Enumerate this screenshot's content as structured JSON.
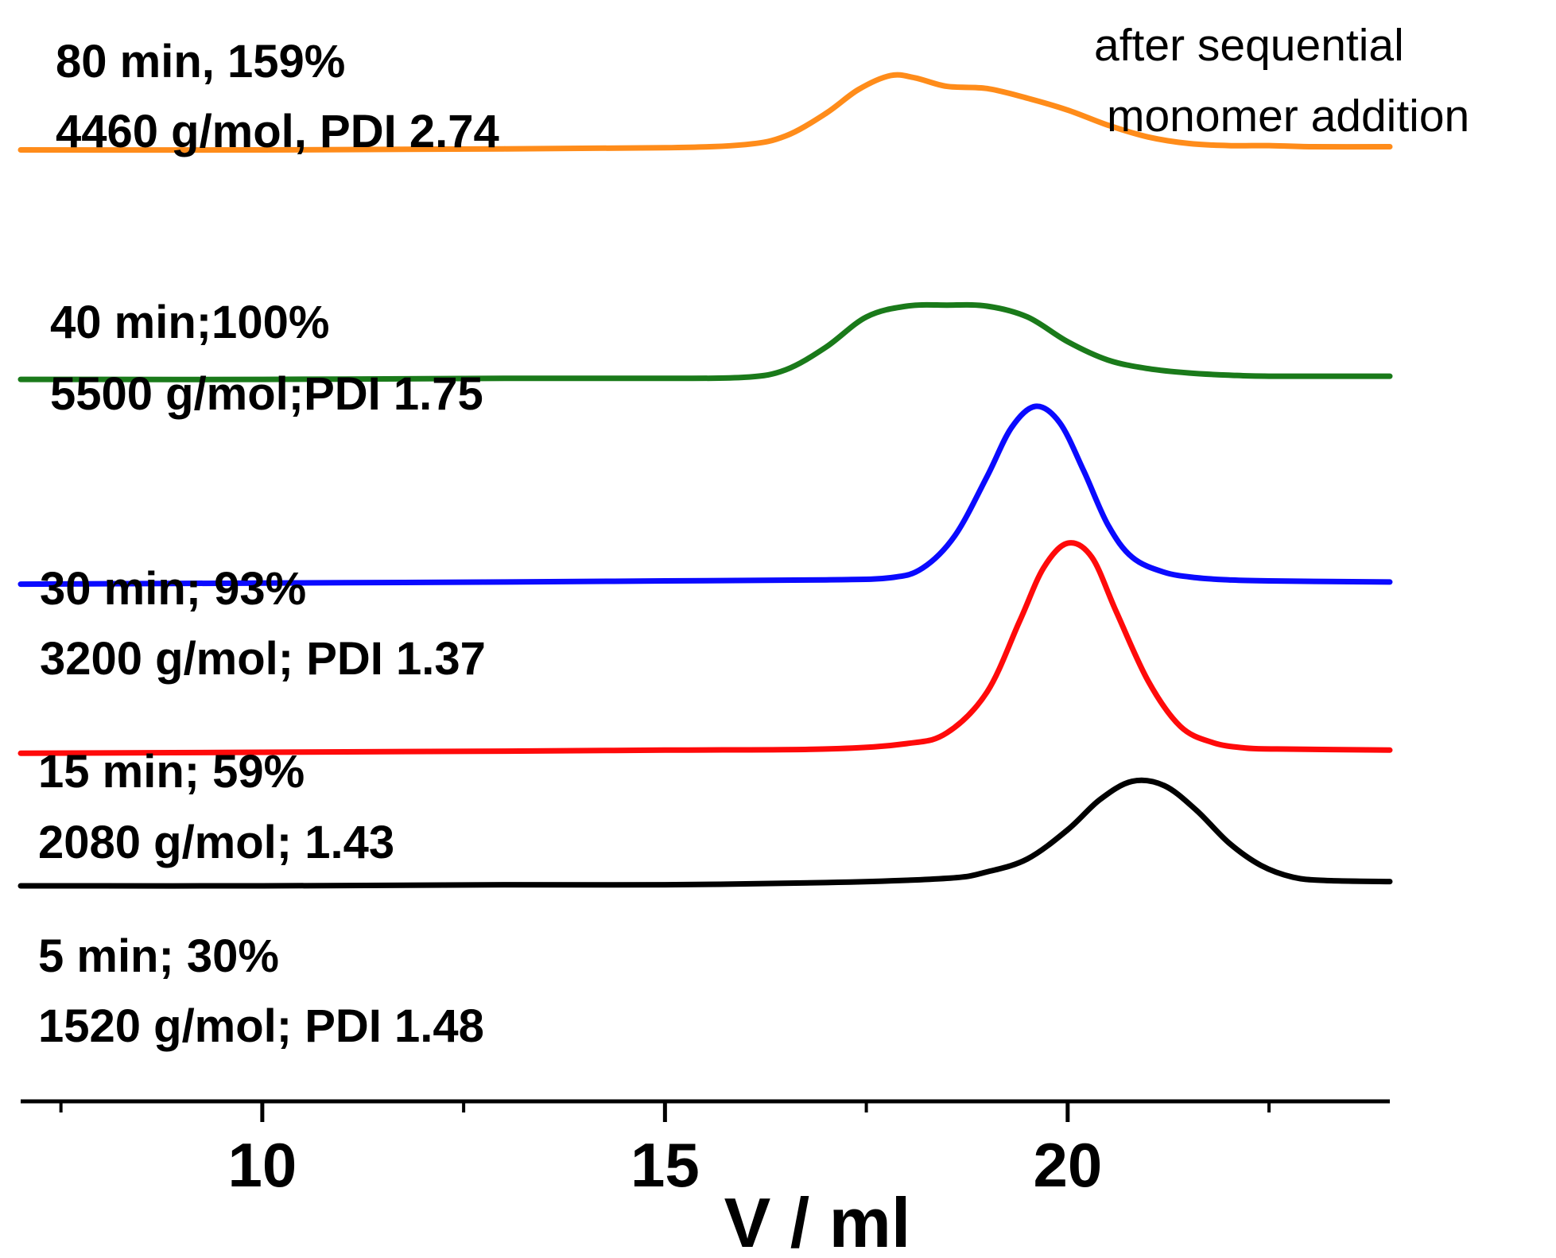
{
  "chart_data": {
    "type": "line",
    "title": "",
    "xlabel": "V / ml",
    "ylabel": "",
    "xlim": [
      7,
      24
    ],
    "ylim": [
      0,
      1
    ],
    "grid": false,
    "x_ticks": [
      {
        "value": 10,
        "label": "10"
      },
      {
        "value": 15,
        "label": "15"
      },
      {
        "value": 20,
        "label": "20"
      }
    ],
    "x_minor_ticks": [
      7.5,
      12.5,
      17.5,
      22.5
    ],
    "note": [
      "after sequential",
      "monomer addition"
    ],
    "series": [
      {
        "name": "80 min",
        "color": "#ff8c1a",
        "label_lines": [
          "80 min, 159%",
          "4460 g/mol, PDI 2.74"
        ],
        "x": [
          7,
          10,
          13,
          15,
          16,
          16.5,
          17,
          17.4,
          17.8,
          18.1,
          18.5,
          19.0,
          19.5,
          20.0,
          20.5,
          21.0,
          21.5,
          22.0,
          22.5,
          23.0,
          24.0
        ],
        "y": [
          0.883,
          0.883,
          0.884,
          0.885,
          0.888,
          0.896,
          0.917,
          0.939,
          0.952,
          0.95,
          0.942,
          0.94,
          0.931,
          0.92,
          0.906,
          0.895,
          0.889,
          0.887,
          0.887,
          0.886,
          0.886
        ]
      },
      {
        "name": "40 min",
        "color": "#1a7a1a",
        "label_lines": [
          "40 min;100%",
          "5500 g/mol;PDI 1.75"
        ],
        "x": [
          7,
          10,
          13,
          15,
          16,
          16.5,
          17,
          17.5,
          18.0,
          18.5,
          19.0,
          19.5,
          20.0,
          20.5,
          21.0,
          21.5,
          22.0,
          22.5,
          24.0
        ],
        "y": [
          0.67,
          0.67,
          0.671,
          0.671,
          0.672,
          0.679,
          0.7,
          0.728,
          0.738,
          0.739,
          0.738,
          0.728,
          0.705,
          0.688,
          0.68,
          0.676,
          0.674,
          0.673,
          0.673
        ]
      },
      {
        "name": "30 min",
        "color": "#0a0aff",
        "label_lines": [
          "30 min; 93%",
          "3200 g/mol; PDI 1.37"
        ],
        "x": [
          7,
          10,
          13,
          15,
          17,
          17.8,
          18.2,
          18.6,
          19.0,
          19.3,
          19.6,
          19.9,
          20.2,
          20.5,
          20.8,
          21.2,
          21.6,
          22.0,
          22.5,
          24.0
        ],
        "y": [
          0.48,
          0.481,
          0.482,
          0.483,
          0.484,
          0.486,
          0.495,
          0.525,
          0.58,
          0.625,
          0.645,
          0.63,
          0.585,
          0.535,
          0.505,
          0.491,
          0.486,
          0.484,
          0.483,
          0.482
        ]
      },
      {
        "name": "15 min",
        "color": "#ff0a0a",
        "label_lines": [
          "15 min; 59%",
          "2080 g/mol;  1.43"
        ],
        "x": [
          7,
          10,
          13,
          15,
          17,
          18.0,
          18.5,
          19.0,
          19.4,
          19.7,
          20.0,
          20.3,
          20.6,
          21.0,
          21.4,
          21.8,
          22.2,
          22.6,
          24.0
        ],
        "y": [
          0.323,
          0.324,
          0.325,
          0.326,
          0.327,
          0.332,
          0.342,
          0.38,
          0.445,
          0.495,
          0.518,
          0.505,
          0.455,
          0.39,
          0.348,
          0.333,
          0.328,
          0.327,
          0.326
        ]
      },
      {
        "name": "5 min",
        "color": "#000000",
        "label_lines": [
          "5 min; 30%",
          "1520 g/mol; PDI 1.48"
        ],
        "x": [
          7,
          10,
          13,
          15,
          17,
          18.5,
          19.0,
          19.5,
          20.0,
          20.4,
          20.8,
          21.2,
          21.6,
          22.0,
          22.4,
          22.8,
          23.2,
          24.0
        ],
        "y": [
          0.2,
          0.2,
          0.201,
          0.201,
          0.203,
          0.207,
          0.213,
          0.225,
          0.252,
          0.28,
          0.297,
          0.293,
          0.27,
          0.24,
          0.219,
          0.208,
          0.205,
          0.204
        ]
      }
    ]
  }
}
